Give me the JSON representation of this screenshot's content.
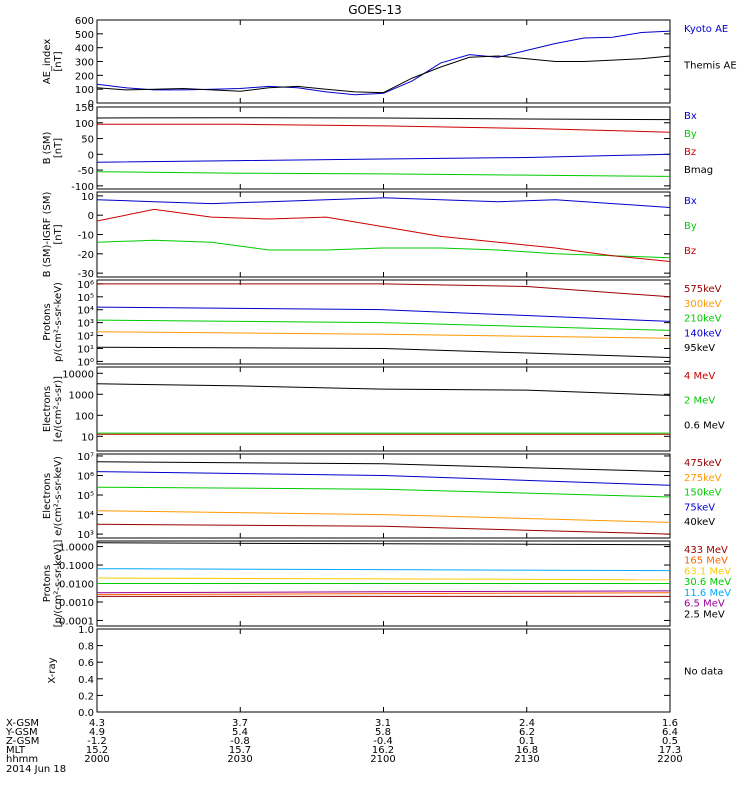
{
  "title": "GOES-13",
  "chart_data": [
    {
      "type": "line",
      "ylabel": "AE_index\n[nT]",
      "ylim": [
        0,
        600
      ],
      "yticks": [
        "0",
        "100",
        "200",
        "300",
        "400",
        "500",
        "600"
      ],
      "ytick_values": [
        0,
        100,
        200,
        300,
        400,
        500,
        600
      ],
      "grid": false,
      "series": [
        {
          "name": "Kyoto AE",
          "color": "#0000cc",
          "points": [
            [
              0,
              135
            ],
            [
              5,
              110
            ],
            [
              10,
              95
            ],
            [
              15,
              95
            ],
            [
              20,
              100
            ],
            [
              25,
              105
            ],
            [
              30,
              120
            ],
            [
              35,
              110
            ],
            [
              40,
              80
            ],
            [
              45,
              60
            ],
            [
              50,
              70
            ],
            [
              55,
              160
            ],
            [
              60,
              290
            ],
            [
              65,
              350
            ],
            [
              70,
              330
            ],
            [
              75,
              380
            ],
            [
              80,
              430
            ],
            [
              85,
              470
            ],
            [
              90,
              475
            ],
            [
              95,
              510
            ],
            [
              100,
              520
            ]
          ]
        },
        {
          "name": "Themis AE",
          "color": "#000000",
          "points": [
            [
              0,
              110
            ],
            [
              5,
              95
            ],
            [
              10,
              100
            ],
            [
              15,
              105
            ],
            [
              20,
              95
            ],
            [
              25,
              85
            ],
            [
              30,
              110
            ],
            [
              35,
              120
            ],
            [
              40,
              100
            ],
            [
              45,
              80
            ],
            [
              50,
              75
            ],
            [
              55,
              180
            ],
            [
              60,
              260
            ],
            [
              65,
              330
            ],
            [
              70,
              340
            ],
            [
              75,
              320
            ],
            [
              80,
              300
            ],
            [
              85,
              300
            ],
            [
              90,
              310
            ],
            [
              95,
              320
            ],
            [
              100,
              340
            ]
          ]
        }
      ]
    },
    {
      "type": "line",
      "ylabel": "B (SM)\n[nT]",
      "ylim": [
        -110,
        150
      ],
      "yticks": [
        "150",
        "100",
        "50",
        "0",
        "-50",
        "-100"
      ],
      "ytick_values": [
        150,
        100,
        50,
        0,
        -50,
        -100
      ],
      "grid": false,
      "series": [
        {
          "name": "Bx",
          "color": "#0000cc",
          "points": [
            [
              0,
              -25
            ],
            [
              25,
              -20
            ],
            [
              50,
              -15
            ],
            [
              75,
              -10
            ],
            [
              100,
              0
            ]
          ]
        },
        {
          "name": "By",
          "color": "#00cc00",
          "points": [
            [
              0,
              -55
            ],
            [
              25,
              -60
            ],
            [
              50,
              -62
            ],
            [
              75,
              -66
            ],
            [
              100,
              -70
            ]
          ]
        },
        {
          "name": "Bz",
          "color": "#cc0000",
          "points": [
            [
              0,
              95
            ],
            [
              25,
              95
            ],
            [
              50,
              90
            ],
            [
              75,
              82
            ],
            [
              100,
              70
            ]
          ]
        },
        {
          "name": "Bmag",
          "color": "#000000",
          "points": [
            [
              0,
              115
            ],
            [
              25,
              116
            ],
            [
              50,
              115
            ],
            [
              75,
              112
            ],
            [
              100,
              110
            ]
          ]
        }
      ]
    },
    {
      "type": "line",
      "ylabel": "B (SM)-IGRF (SM)\n[nT]",
      "ylim": [
        -32,
        12
      ],
      "yticks": [
        "10",
        "0",
        "-10",
        "-20",
        "-30"
      ],
      "ytick_values": [
        10,
        0,
        -10,
        -20,
        -30
      ],
      "grid": false,
      "series": [
        {
          "name": "Bx",
          "color": "#0000cc",
          "points": [
            [
              0,
              8
            ],
            [
              10,
              7
            ],
            [
              20,
              6
            ],
            [
              30,
              7
            ],
            [
              40,
              8
            ],
            [
              50,
              9
            ],
            [
              60,
              8
            ],
            [
              70,
              7
            ],
            [
              80,
              8
            ],
            [
              90,
              6
            ],
            [
              100,
              4
            ]
          ]
        },
        {
          "name": "By",
          "color": "#00cc00",
          "points": [
            [
              0,
              -14
            ],
            [
              10,
              -13
            ],
            [
              20,
              -14
            ],
            [
              30,
              -18
            ],
            [
              40,
              -18
            ],
            [
              50,
              -17
            ],
            [
              60,
              -17
            ],
            [
              70,
              -18
            ],
            [
              80,
              -20
            ],
            [
              90,
              -21
            ],
            [
              100,
              -22
            ]
          ]
        },
        {
          "name": "Bz",
          "color": "#cc0000",
          "points": [
            [
              0,
              -3
            ],
            [
              10,
              3
            ],
            [
              20,
              -1
            ],
            [
              30,
              -2
            ],
            [
              40,
              -1
            ],
            [
              50,
              -6
            ],
            [
              60,
              -11
            ],
            [
              70,
              -14
            ],
            [
              80,
              -17
            ],
            [
              90,
              -21
            ],
            [
              100,
              -24
            ]
          ]
        }
      ]
    },
    {
      "type": "line",
      "scale": "log",
      "ylabel": "Protons\np/(cm²-s-sr-keV)",
      "ylim_log": [
        -0.2,
        6.3
      ],
      "yticks": [
        "10⁰",
        "10¹",
        "10²",
        "10³",
        "10⁴",
        "10⁵",
        "10⁶"
      ],
      "ytick_values": [
        0,
        1,
        2,
        3,
        4,
        5,
        6
      ],
      "grid": false,
      "series": [
        {
          "name": "575keV",
          "color": "#990000",
          "points": [
            [
              0,
              6.0
            ],
            [
              50,
              6.0
            ],
            [
              75,
              5.8
            ],
            [
              100,
              5.0
            ]
          ]
        },
        {
          "name": "300keV",
          "color": "#ff9900",
          "points": [
            [
              0,
              2.3
            ],
            [
              50,
              2.1
            ],
            [
              100,
              1.8
            ]
          ]
        },
        {
          "name": "210keV",
          "color": "#00cc00",
          "points": [
            [
              0,
              3.2
            ],
            [
              50,
              3.0
            ],
            [
              100,
              2.4
            ]
          ]
        },
        {
          "name": "140keV",
          "color": "#0000cc",
          "points": [
            [
              0,
              4.2
            ],
            [
              50,
              4.0
            ],
            [
              100,
              3.1
            ]
          ]
        },
        {
          "name": "95keV",
          "color": "#000000",
          "points": [
            [
              0,
              1.1
            ],
            [
              50,
              1.0
            ],
            [
              100,
              0.3
            ]
          ]
        }
      ]
    },
    {
      "type": "line",
      "scale": "log",
      "ylabel": "Electrons\n[e/(cm²-s-sr)]",
      "ylim_log": [
        0.3,
        4.3
      ],
      "yticks": [
        "10",
        "100",
        "1000",
        "10000"
      ],
      "ytick_values": [
        1,
        2,
        3,
        4
      ],
      "grid": false,
      "series": [
        {
          "name": "4 MeV",
          "color": "#cc0000",
          "points": [
            [
              0,
              1.1
            ],
            [
              100,
              1.1
            ]
          ]
        },
        {
          "name": "2 MeV",
          "color": "#00cc00",
          "points": [
            [
              0,
              1.15
            ],
            [
              100,
              1.15
            ]
          ]
        },
        {
          "name": "0.6 MeV",
          "color": "#000000",
          "points": [
            [
              0,
              3.5
            ],
            [
              25,
              3.4
            ],
            [
              50,
              3.25
            ],
            [
              75,
              3.2
            ],
            [
              100,
              2.95
            ]
          ]
        }
      ]
    },
    {
      "type": "line",
      "scale": "log",
      "ylabel": "Electrons\ne/(cm²-s-sr-keV)",
      "ylim_log": [
        2.8,
        7.1
      ],
      "yticks": [
        "10³",
        "10⁴",
        "10⁵",
        "10⁶",
        "10⁷"
      ],
      "ytick_values": [
        3,
        4,
        5,
        6,
        7
      ],
      "grid": false,
      "series": [
        {
          "name": "475keV",
          "color": "#990000",
          "points": [
            [
              0,
              3.5
            ],
            [
              50,
              3.4
            ],
            [
              100,
              3.0
            ]
          ]
        },
        {
          "name": "275keV",
          "color": "#ff9900",
          "points": [
            [
              0,
              4.2
            ],
            [
              50,
              4.0
            ],
            [
              100,
              3.6
            ]
          ]
        },
        {
          "name": "150keV",
          "color": "#00cc00",
          "points": [
            [
              0,
              5.4
            ],
            [
              50,
              5.3
            ],
            [
              100,
              4.9
            ]
          ]
        },
        {
          "name": "75keV",
          "color": "#0000cc",
          "points": [
            [
              0,
              6.2
            ],
            [
              50,
              6.0
            ],
            [
              100,
              5.5
            ]
          ]
        },
        {
          "name": "40keV",
          "color": "#000000",
          "points": [
            [
              0,
              6.7
            ],
            [
              50,
              6.6
            ],
            [
              100,
              6.2
            ]
          ]
        }
      ]
    },
    {
      "type": "line",
      "scale": "log",
      "ylabel": "Protons\n[p/(cm²-s-sr-keV)]",
      "ylim_log": [
        -4.3,
        0.3
      ],
      "yticks": [
        "0.0001",
        "0.0010",
        "0.0100",
        "0.1000",
        "1.0000"
      ],
      "ytick_values": [
        -4,
        -3,
        -2,
        -1,
        0
      ],
      "grid": false,
      "series": [
        {
          "name": "433 MeV",
          "color": "#990000",
          "points": [
            [
              0,
              -2.7
            ],
            [
              100,
              -2.7
            ]
          ]
        },
        {
          "name": "165 MeV",
          "color": "#ff6600",
          "points": [
            [
              0,
              -2.6
            ],
            [
              100,
              -2.5
            ]
          ]
        },
        {
          "name": "63.1 MeV",
          "color": "#ffcc00",
          "points": [
            [
              0,
              -1.7
            ],
            [
              100,
              -1.8
            ]
          ]
        },
        {
          "name": "30.6 MeV",
          "color": "#00cc00",
          "points": [
            [
              0,
              -2.0
            ],
            [
              100,
              -2.0
            ]
          ]
        },
        {
          "name": "11.6 MeV",
          "color": "#00aaff",
          "points": [
            [
              0,
              -1.2
            ],
            [
              100,
              -1.3
            ]
          ]
        },
        {
          "name": "6.5 MeV",
          "color": "#990099",
          "points": [
            [
              0,
              -2.5
            ],
            [
              100,
              -2.4
            ]
          ]
        },
        {
          "name": "2.5 MeV",
          "color": "#000000",
          "points": [
            [
              0,
              0.2
            ],
            [
              100,
              0.1
            ]
          ]
        }
      ]
    },
    {
      "type": "line",
      "ylabel": "X-ray",
      "ylim": [
        0,
        1
      ],
      "yticks": [
        "0.0",
        "0.2",
        "0.4",
        "0.6",
        "0.8",
        "1.0"
      ],
      "ytick_values": [
        0,
        0.2,
        0.4,
        0.6,
        0.8,
        1.0
      ],
      "grid": false,
      "series": [],
      "note": "No data"
    }
  ],
  "footer": {
    "row_labels": [
      "X-GSM",
      "Y-GSM",
      "Z-GSM",
      "MLT",
      "hhmm",
      "2014 Jun 18"
    ],
    "columns": [
      [
        "4.3",
        "4.9",
        "-1.2",
        "15.2",
        "2000"
      ],
      [
        "3.7",
        "5.4",
        "-0.8",
        "15.7",
        "2030"
      ],
      [
        "3.1",
        "5.8",
        "-0.4",
        "16.2",
        "2100"
      ],
      [
        "2.4",
        "6.2",
        "0.1",
        "16.8",
        "2130"
      ],
      [
        "1.6",
        "6.4",
        "0.5",
        "17.3",
        "2200"
      ]
    ]
  },
  "colors": {
    "axis": "#000000",
    "background": "#ffffff"
  }
}
